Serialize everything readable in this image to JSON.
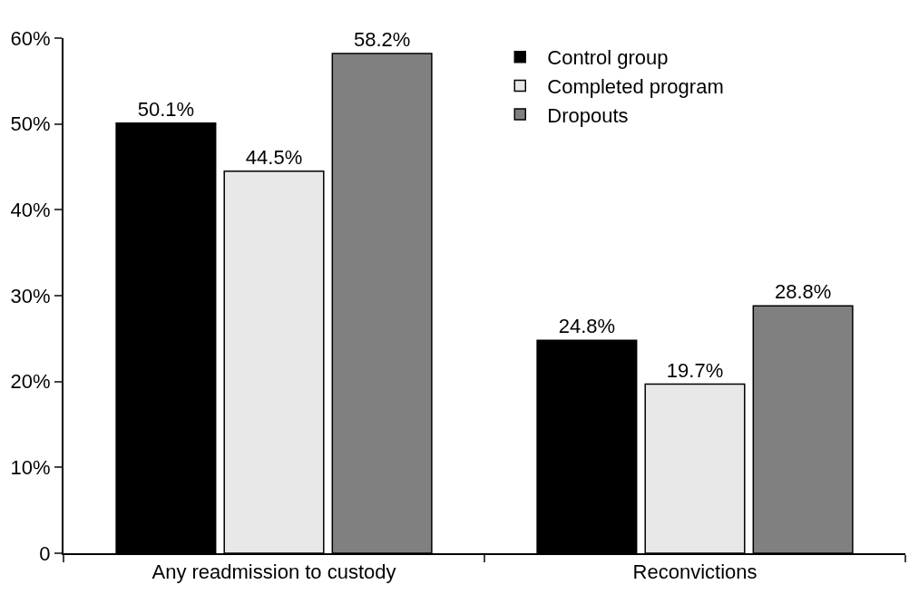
{
  "chart_data": {
    "type": "bar",
    "categories": [
      "Any readmission to custody",
      "Reconvictions"
    ],
    "series": [
      {
        "name": "Control group",
        "color": "#000000",
        "values": [
          50.1,
          24.8
        ],
        "value_labels": [
          "50.1%",
          "24.8%"
        ]
      },
      {
        "name": "Completed program",
        "color": "#e8e8e8",
        "values": [
          44.5,
          19.7
        ],
        "value_labels": [
          "44.5%",
          "19.7%"
        ]
      },
      {
        "name": "Dropouts",
        "color": "#808080",
        "values": [
          58.2,
          28.8
        ],
        "value_labels": [
          "58.2%",
          "28.8%"
        ]
      }
    ],
    "ylim": [
      0,
      60
    ],
    "yticks": [
      0,
      {
        "value": 10,
        "label": "10%"
      },
      {
        "value": 20,
        "label": "20%"
      },
      {
        "value": 30,
        "label": "30%"
      },
      {
        "value": 40,
        "label": "40%"
      },
      {
        "value": 50,
        "label": "50%"
      },
      {
        "value": 60,
        "label": "60%"
      }
    ],
    "grid": false,
    "legend": "top right"
  }
}
